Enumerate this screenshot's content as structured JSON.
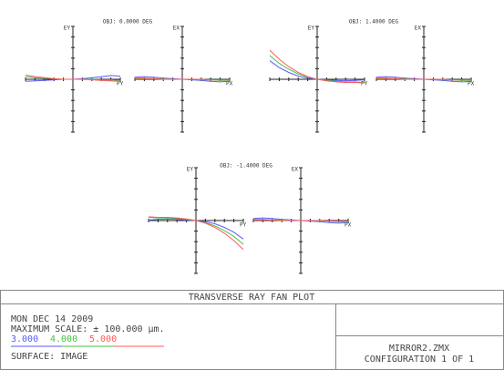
{
  "chart_data": [
    {
      "type": "line",
      "title": "OBJ: 0.0000 DEG",
      "panels": [
        {
          "y_label": "EY",
          "x_label": "PY",
          "xlim": [
            -1,
            1
          ],
          "ylim": [
            -100,
            100
          ],
          "xticks": [
            -1,
            -0.8,
            -0.6,
            -0.4,
            -0.2,
            0,
            0.2,
            0.4,
            0.6,
            0.8,
            1
          ],
          "yticks": [
            -100,
            -80,
            -60,
            -40,
            -20,
            0,
            20,
            40,
            60,
            80,
            100
          ],
          "x": [
            -1,
            -0.8,
            -0.6,
            -0.4,
            -0.2,
            0,
            0.2,
            0.4,
            0.6,
            0.8,
            1
          ],
          "series": [
            {
              "values": [
                -4,
                -3,
                -2,
                -1,
                0,
                0,
                1,
                3,
                5,
                7,
                6
              ]
            },
            {
              "values": [
                5,
                3,
                2,
                1,
                0,
                0,
                0,
                0,
                -1,
                -1,
                -2
              ]
            },
            {
              "values": [
                8,
                5,
                3,
                1,
                0,
                0,
                0,
                -1,
                -2,
                -3,
                -4
              ]
            }
          ]
        },
        {
          "y_label": "EX",
          "x_label": "PX",
          "xlim": [
            -1,
            1
          ],
          "ylim": [
            -100,
            100
          ],
          "xticks": [
            -1,
            -0.8,
            -0.6,
            -0.4,
            -0.2,
            0,
            0.2,
            0.4,
            0.6,
            0.8,
            1
          ],
          "yticks": [
            -100,
            -80,
            -60,
            -40,
            -20,
            0,
            20,
            40,
            60,
            80,
            100
          ],
          "x": [
            -1,
            -0.8,
            -0.6,
            -0.4,
            -0.2,
            0,
            0.2,
            0.4,
            0.6,
            0.8,
            1
          ],
          "series": [
            {
              "values": [
                4,
                5,
                4,
                2,
                1,
                0,
                -1,
                -2,
                -4,
                -5,
                -4
              ]
            },
            {
              "values": [
                2,
                2,
                1,
                1,
                0,
                0,
                0,
                -1,
                -1,
                -2,
                -2
              ]
            },
            {
              "values": [
                1,
                1,
                1,
                0,
                0,
                0,
                0,
                0,
                -1,
                -1,
                -1
              ]
            }
          ]
        }
      ]
    },
    {
      "type": "line",
      "title": "OBJ: 1.4000 DEG",
      "panels": [
        {
          "y_label": "EY",
          "x_label": "PY",
          "xlim": [
            -1,
            1
          ],
          "ylim": [
            -100,
            100
          ],
          "xticks": [
            -1,
            -0.8,
            -0.6,
            -0.4,
            -0.2,
            0,
            0.2,
            0.4,
            0.6,
            0.8,
            1
          ],
          "yticks": [
            -100,
            -80,
            -60,
            -40,
            -20,
            0,
            20,
            40,
            60,
            80,
            100
          ],
          "x": [
            -1,
            -0.8,
            -0.6,
            -0.4,
            -0.2,
            0,
            0.2,
            0.4,
            0.6,
            0.8,
            1
          ],
          "series": [
            {
              "values": [
                35,
                22,
                13,
                6,
                2,
                0,
                -1,
                -2,
                -3,
                -2,
                -1
              ]
            },
            {
              "values": [
                45,
                30,
                19,
                10,
                4,
                0,
                -2,
                -4,
                -5,
                -5,
                -6
              ]
            },
            {
              "values": [
                55,
                38,
                24,
                13,
                5,
                0,
                -3,
                -5,
                -6,
                -6,
                -7
              ]
            }
          ]
        },
        {
          "y_label": "EX",
          "x_label": "PX",
          "xlim": [
            -1,
            1
          ],
          "ylim": [
            -100,
            100
          ],
          "xticks": [
            -1,
            -0.8,
            -0.6,
            -0.4,
            -0.2,
            0,
            0.2,
            0.4,
            0.6,
            0.8,
            1
          ],
          "yticks": [
            -100,
            -80,
            -60,
            -40,
            -20,
            0,
            20,
            40,
            60,
            80,
            100
          ],
          "x": [
            -1,
            -0.8,
            -0.6,
            -0.4,
            -0.2,
            0,
            0.2,
            0.4,
            0.6,
            0.8,
            1
          ],
          "series": [
            {
              "values": [
                4,
                5,
                4,
                2,
                1,
                0,
                -1,
                -2,
                -4,
                -5,
                -4
              ]
            },
            {
              "values": [
                2,
                2,
                1,
                1,
                0,
                0,
                0,
                -1,
                -1,
                -2,
                -2
              ]
            },
            {
              "values": [
                1,
                1,
                1,
                0,
                0,
                0,
                0,
                0,
                -1,
                -1,
                -1
              ]
            }
          ]
        }
      ]
    },
    {
      "type": "line",
      "title": "OBJ: -1.4000 DEG",
      "panels": [
        {
          "y_label": "EY",
          "x_label": "PY",
          "xlim": [
            -1,
            1
          ],
          "ylim": [
            -100,
            100
          ],
          "xticks": [
            -1,
            -0.8,
            -0.6,
            -0.4,
            -0.2,
            0,
            0.2,
            0.4,
            0.6,
            0.8,
            1
          ],
          "yticks": [
            -100,
            -80,
            -60,
            -40,
            -20,
            0,
            20,
            40,
            60,
            80,
            100
          ],
          "x": [
            -1,
            -0.8,
            -0.6,
            -0.4,
            -0.2,
            0,
            0.2,
            0.4,
            0.6,
            0.8,
            1
          ],
          "series": [
            {
              "values": [
                1,
                2,
                3,
                2,
                1,
                0,
                -2,
                -6,
                -13,
                -22,
                -35
              ]
            },
            {
              "values": [
                6,
                5,
                5,
                4,
                2,
                0,
                -4,
                -10,
                -19,
                -30,
                -45
              ]
            },
            {
              "values": [
                7,
                6,
                6,
                5,
                3,
                0,
                -5,
                -13,
                -24,
                -38,
                -55
              ]
            }
          ]
        },
        {
          "y_label": "EX",
          "x_label": "PX",
          "xlim": [
            -1,
            1
          ],
          "ylim": [
            -100,
            100
          ],
          "xticks": [
            -1,
            -0.8,
            -0.6,
            -0.4,
            -0.2,
            0,
            0.2,
            0.4,
            0.6,
            0.8,
            1
          ],
          "yticks": [
            -100,
            -80,
            -60,
            -40,
            -20,
            0,
            20,
            40,
            60,
            80,
            100
          ],
          "x": [
            -1,
            -0.8,
            -0.6,
            -0.4,
            -0.2,
            0,
            0.2,
            0.4,
            0.6,
            0.8,
            1
          ],
          "series": [
            {
              "values": [
                4,
                5,
                4,
                2,
                1,
                0,
                -1,
                -2,
                -4,
                -5,
                -4
              ]
            },
            {
              "values": [
                2,
                2,
                1,
                1,
                0,
                0,
                0,
                -1,
                -1,
                -2,
                -2
              ]
            },
            {
              "values": [
                1,
                1,
                1,
                0,
                0,
                0,
                0,
                0,
                -1,
                -1,
                -1
              ]
            }
          ]
        }
      ]
    }
  ],
  "wavelengths": [
    {
      "name": "3.000",
      "color": "#5a5aff"
    },
    {
      "name": "4.000",
      "color": "#44c044"
    },
    {
      "name": "5.000",
      "color": "#ff5a5a"
    }
  ],
  "footer": {
    "title": "TRANSVERSE RAY FAN PLOT",
    "date": "MON DEC 14 2009",
    "scale": "MAXIMUM SCALE: ± 100.000 µm.",
    "surface": "SURFACE: IMAGE",
    "file": "MIRROR2.ZMX",
    "config": "CONFIGURATION 1 OF 1"
  }
}
